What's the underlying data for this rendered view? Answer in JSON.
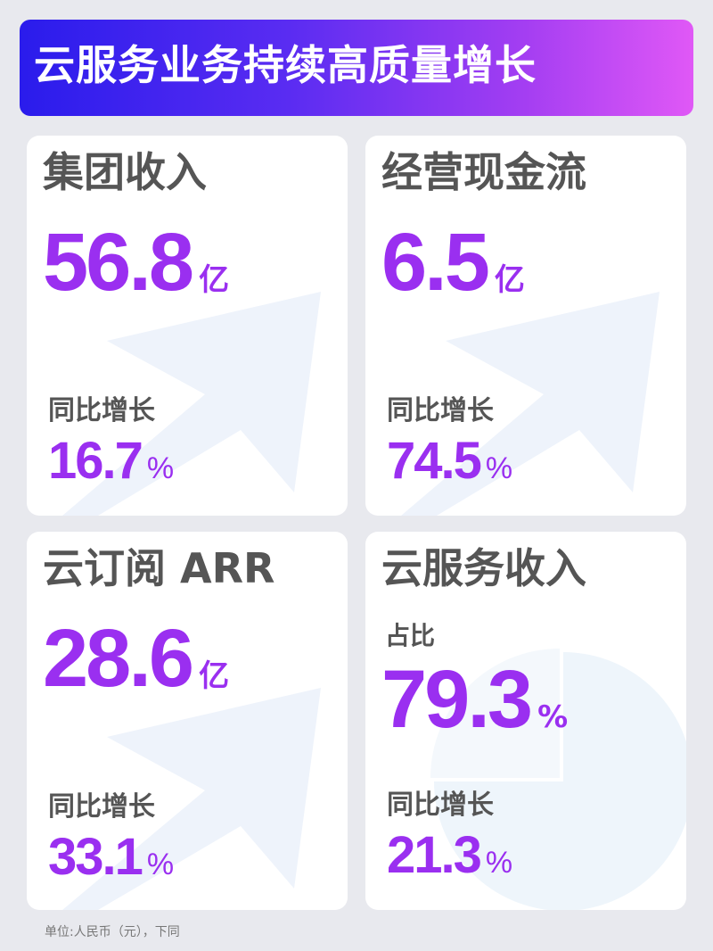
{
  "title": "云服务业务持续高质量增长",
  "cards": [
    {
      "title": "集团收入",
      "value": "56.8",
      "unit": "亿",
      "growth_label": "同比增长",
      "growth": "16.7",
      "growth_unit": "%"
    },
    {
      "title": "经营现金流",
      "value": "6.5",
      "unit": "亿",
      "growth_label": "同比增长",
      "growth": "74.5",
      "growth_unit": "%"
    },
    {
      "title": "云订阅 ARR",
      "value": "28.6",
      "unit": "亿",
      "growth_label": "同比增长",
      "growth": "33.1",
      "growth_unit": "%"
    },
    {
      "title": "云服务收入",
      "share_label": "占比",
      "value": "79.3",
      "unit": "%",
      "growth_label": "同比增长",
      "growth": "21.3",
      "growth_unit": "%"
    }
  ],
  "footnote": "单位:人民币（元），下同",
  "colors": {
    "accent": "#9a2ff0",
    "banner_start": "#2a1cec",
    "banner_end": "#e058f6",
    "text": "#555555"
  }
}
